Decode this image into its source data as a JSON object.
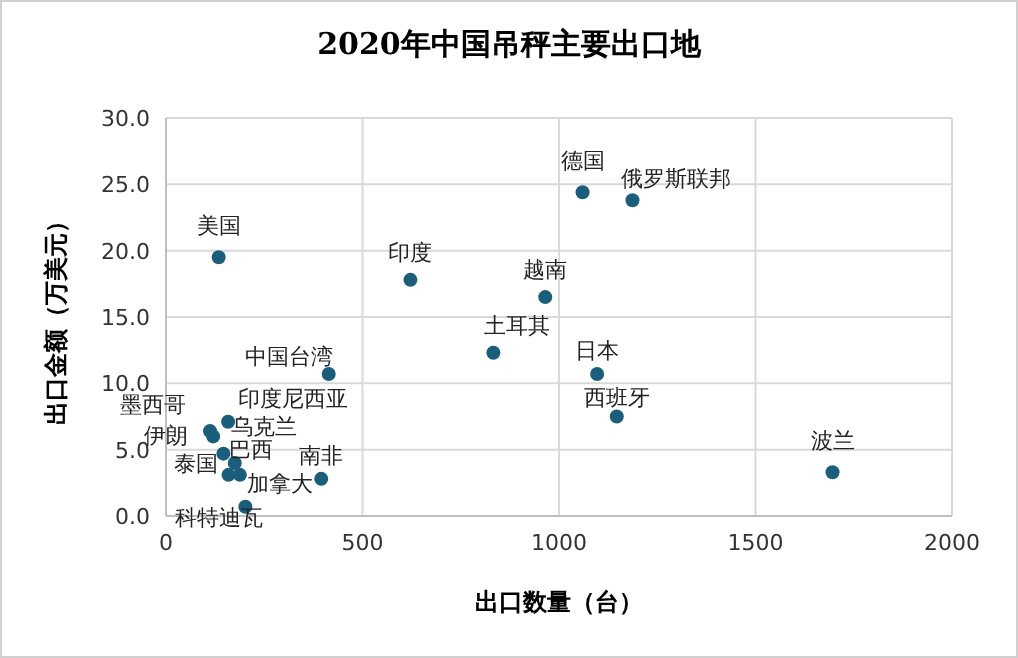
{
  "chart_data": {
    "type": "scatter",
    "title": "2020年中国吊秤主要出口地",
    "xlabel": "出口数量（台）",
    "ylabel": "出口金额（万美元）",
    "xlim": [
      0,
      2000
    ],
    "xticks": [
      0,
      500,
      1000,
      1500,
      2000
    ],
    "ylim": [
      0,
      30
    ],
    "yticks": [
      {
        "value": 0,
        "label": "0.0"
      },
      {
        "value": 5,
        "label": "5.0"
      },
      {
        "value": 10,
        "label": "10.0"
      },
      {
        "value": 15,
        "label": "15.0"
      },
      {
        "value": 20,
        "label": "20.0"
      },
      {
        "value": 25,
        "label": "25.0"
      },
      {
        "value": 30,
        "label": "30.0"
      }
    ],
    "grid": true,
    "marker": "circle",
    "series": [
      {
        "color": "#1b5e7b",
        "x": [
          134,
          622,
          965,
          833,
          414,
          1060,
          1187,
          1097,
          1147,
          1696,
          395,
          202,
          188,
          175,
          159,
          112,
          158,
          146,
          120
        ],
        "values": [
          19.5,
          17.8,
          16.5,
          12.3,
          10.7,
          24.4,
          23.8,
          10.7,
          7.5,
          3.3,
          2.8,
          0.7,
          3.1,
          4.0,
          3.1,
          6.4,
          7.1,
          4.7,
          6.0
        ]
      }
    ],
    "annotations": [
      {
        "text": "美国",
        "x": 134,
        "y": 19.5
      },
      {
        "text": "印度",
        "x": 622,
        "y": 17.8
      },
      {
        "text": "越南",
        "x": 965,
        "y": 16.5
      },
      {
        "text": "土耳其",
        "x": 833,
        "y": 12.3
      },
      {
        "text": "中国台湾",
        "x": 414,
        "y": 10.7
      },
      {
        "text": "德国",
        "x": 1060,
        "y": 24.4
      },
      {
        "text": "俄罗斯联邦",
        "x": 1187,
        "y": 23.8
      },
      {
        "text": "日本",
        "x": 1097,
        "y": 10.7
      },
      {
        "text": "西班牙",
        "x": 1147,
        "y": 7.5
      },
      {
        "text": "波兰",
        "x": 1696,
        "y": 3.3
      },
      {
        "text": "南非",
        "x": 395,
        "y": 2.8
      },
      {
        "text": "科特迪瓦",
        "x": 202,
        "y": 0.7
      },
      {
        "text": "加拿大",
        "x": 188,
        "y": 3.1
      },
      {
        "text": "巴西",
        "x": 175,
        "y": 4.0
      },
      {
        "text": "泰国",
        "x": 159,
        "y": 3.1
      },
      {
        "text": "伊朗",
        "x": 112,
        "y": 6.4
      },
      {
        "text": "乌克兰",
        "x": 158,
        "y": 7.1
      },
      {
        "text": "印度尼西亚",
        "x": 146,
        "y": 4.7
      },
      {
        "text": "墨西哥",
        "x": 120,
        "y": 6.0
      }
    ]
  }
}
